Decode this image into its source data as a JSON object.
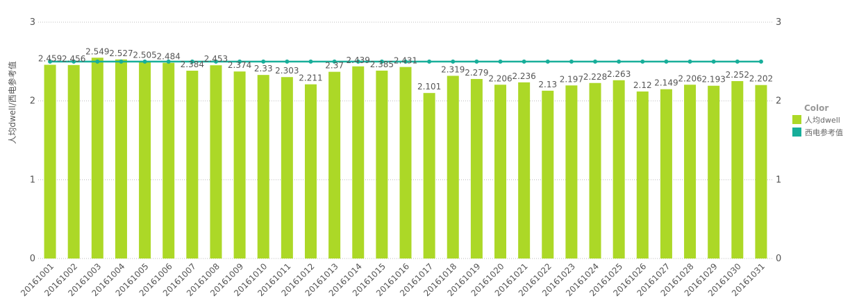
{
  "chart_data": {
    "type": "bar",
    "ylabel": "人均dwell/西电参考值",
    "ylim": [
      0,
      3
    ],
    "yticks": [
      0,
      1,
      2,
      3
    ],
    "grid": true,
    "legend": {
      "title": "Color",
      "placement": "right",
      "items": [
        {
          "label": "人均dwell",
          "color": "#acd827"
        },
        {
          "label": "西电参考值",
          "color": "#17ae9a"
        }
      ]
    },
    "categories": [
      "20161001",
      "20161002",
      "20161003",
      "20161004",
      "20161005",
      "20161006",
      "20161007",
      "20161008",
      "20161009",
      "20161010",
      "20161011",
      "20161012",
      "20161013",
      "20161014",
      "20161015",
      "20161016",
      "20161017",
      "20161018",
      "20161019",
      "20161020",
      "20161021",
      "20161022",
      "20161023",
      "20161024",
      "20161025",
      "20161026",
      "20161027",
      "20161028",
      "20161029",
      "20161030",
      "20161031"
    ],
    "series": [
      {
        "name": "人均dwell",
        "type": "bar",
        "color": "#acd827",
        "values": [
          2.459,
          2.456,
          2.549,
          2.527,
          2.505,
          2.484,
          2.384,
          2.453,
          2.374,
          2.33,
          2.303,
          2.211,
          2.37,
          2.439,
          2.385,
          2.431,
          2.101,
          2.319,
          2.279,
          2.206,
          2.236,
          2.13,
          2.197,
          2.228,
          2.263,
          2.12,
          2.149,
          2.206,
          2.193,
          2.252,
          2.202
        ]
      },
      {
        "name": "西电参考值",
        "type": "line",
        "color": "#17ae9a",
        "values": [
          2.5,
          2.5,
          2.5,
          2.5,
          2.5,
          2.5,
          2.5,
          2.5,
          2.5,
          2.5,
          2.5,
          2.5,
          2.5,
          2.5,
          2.5,
          2.5,
          2.5,
          2.5,
          2.5,
          2.5,
          2.5,
          2.5,
          2.5,
          2.5,
          2.5,
          2.5,
          2.5,
          2.5,
          2.5,
          2.5,
          2.5
        ]
      }
    ]
  }
}
